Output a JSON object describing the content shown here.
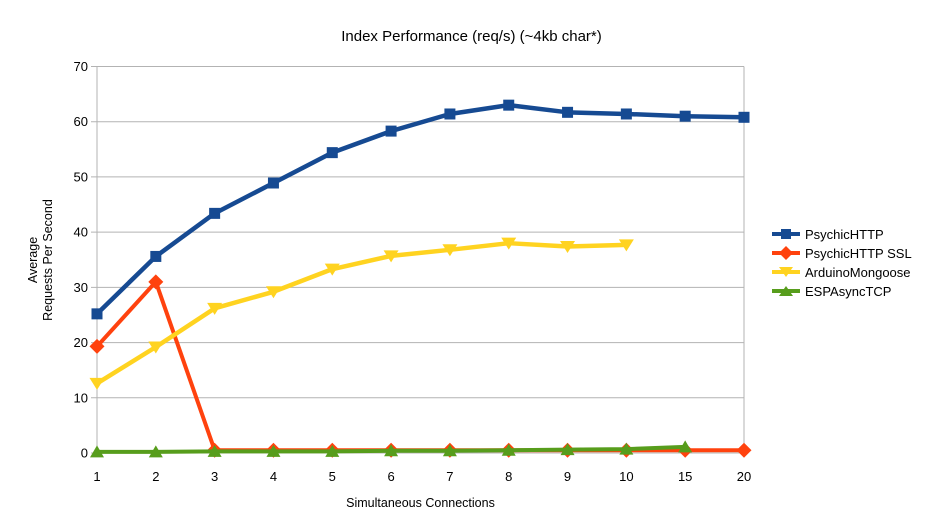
{
  "chart_data": {
    "type": "line",
    "title": "Index Performance (req/s) (~4kb char*)",
    "xlabel": "Simultaneous Connections",
    "ylabel": "Average Requests Per Second",
    "ylabel_lines": [
      "Average",
      "Requests Per Second"
    ],
    "categories": [
      "1",
      "2",
      "3",
      "4",
      "5",
      "6",
      "7",
      "8",
      "9",
      "10",
      "15",
      "20"
    ],
    "y_ticks": [
      0,
      10,
      20,
      30,
      40,
      50,
      60,
      70
    ],
    "ylim": [
      0,
      70
    ],
    "grid": "horizontal",
    "legend_position": "right",
    "background_color": "#ffffff",
    "grid_color": "#b3b3b3",
    "text_color": "#000000",
    "series": [
      {
        "name": "PsychicHTTP",
        "color": "#164a92",
        "marker": "square",
        "line_width": 4.5,
        "values": [
          25.2,
          35.6,
          43.4,
          48.9,
          54.4,
          58.3,
          61.4,
          63.0,
          61.7,
          61.4,
          61.0,
          60.8
        ]
      },
      {
        "name": "PsychicHTTP SSL",
        "color": "#ff420e",
        "marker": "diamond",
        "line_width": 4,
        "values": [
          19.3,
          31.0,
          0.5,
          0.5,
          0.5,
          0.5,
          0.5,
          0.5,
          0.5,
          0.5,
          0.5,
          0.5
        ]
      },
      {
        "name": "ArduinoMongoose",
        "color": "#ffd320",
        "marker": "triangle-down",
        "line_width": 4.5,
        "values": [
          12.6,
          19.2,
          26.2,
          29.2,
          33.3,
          35.7,
          36.8,
          38.0,
          37.4,
          37.7,
          null,
          null
        ]
      },
      {
        "name": "ESPAsyncTCP",
        "color": "#579d1c",
        "marker": "triangle-up",
        "line_width": 4,
        "values": [
          0.2,
          0.2,
          0.3,
          0.3,
          0.3,
          0.4,
          0.4,
          0.5,
          0.6,
          0.7,
          1.1,
          null
        ]
      }
    ]
  }
}
